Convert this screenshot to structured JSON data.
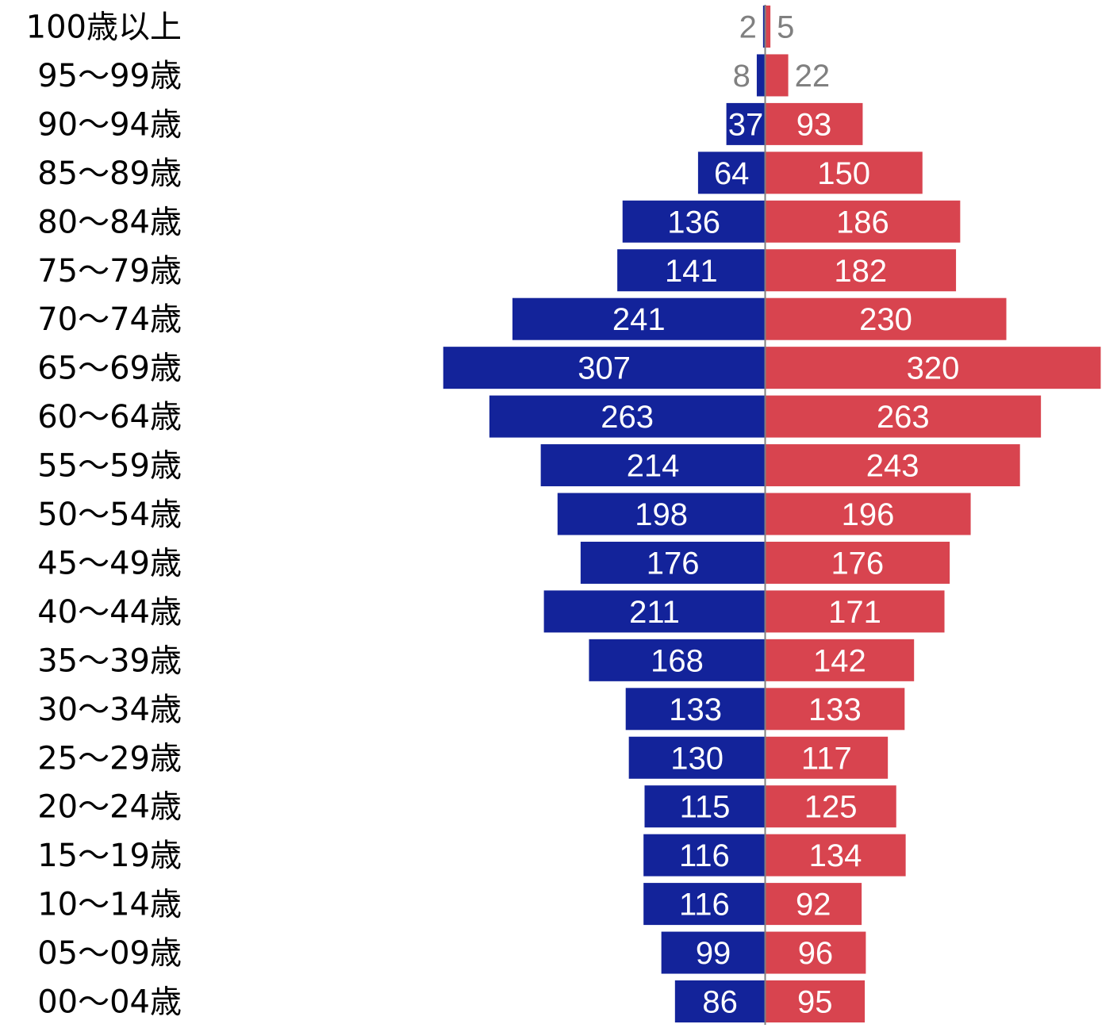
{
  "chart_data": {
    "type": "bar",
    "orientation": "horizontal-diverging",
    "title": "",
    "xlabel": "",
    "ylabel": "",
    "categories": [
      "100歳以上",
      "95〜99歳",
      "90〜94歳",
      "85〜89歳",
      "80〜84歳",
      "75〜79歳",
      "70〜74歳",
      "65〜69歳",
      "60〜64歳",
      "55〜59歳",
      "50〜54歳",
      "45〜49歳",
      "40〜44歳",
      "35〜39歳",
      "30〜34歳",
      "25〜29歳",
      "20〜24歳",
      "15〜19歳",
      "10〜14歳",
      "05〜09歳",
      "00〜04歳"
    ],
    "series": [
      {
        "side": "left",
        "color": "#13239a",
        "values": [
          2,
          8,
          37,
          64,
          136,
          141,
          241,
          307,
          263,
          214,
          198,
          176,
          211,
          168,
          133,
          130,
          115,
          116,
          116,
          99,
          86
        ]
      },
      {
        "side": "right",
        "color": "#d8444f",
        "values": [
          5,
          22,
          93,
          150,
          186,
          182,
          230,
          320,
          263,
          243,
          196,
          176,
          171,
          142,
          133,
          117,
          125,
          134,
          92,
          96,
          95
        ]
      }
    ],
    "label_color_inside": "#ffffff",
    "label_color_outside": "#808080",
    "axis_line_color": "#808080",
    "legend": "none",
    "grid": false
  }
}
